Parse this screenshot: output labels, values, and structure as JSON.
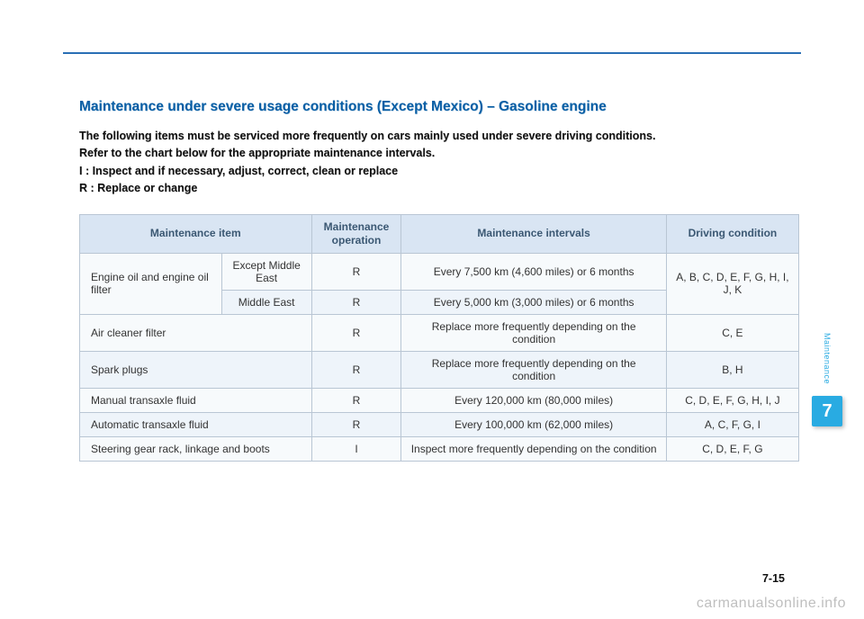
{
  "section_title": "Maintenance under severe usage conditions (Except Mexico) – Gasoline engine",
  "intro": {
    "line1": "The following items must be serviced more frequently on cars mainly used under severe driving conditions.",
    "line2": "Refer to the chart below for the appropriate maintenance intervals.",
    "line3": "I : Inspect and if necessary, adjust, correct, clean or replace",
    "line4": "R : Replace or change"
  },
  "table": {
    "headers": {
      "item": "Maintenance item",
      "operation": "Maintenance operation",
      "intervals": "Maintenance intervals",
      "condition": "Driving condition"
    },
    "rows": {
      "engine_oil_label": "Engine oil and engine oil filter",
      "engine_oil_except_sub": "Except Middle East",
      "engine_oil_except_op": "R",
      "engine_oil_except_int": "Every 7,500 km (4,600 miles) or 6 months",
      "engine_oil_me_sub": "Middle East",
      "engine_oil_me_op": "R",
      "engine_oil_me_int": "Every 5,000 km (3,000 miles) or 6 months",
      "engine_oil_cond": "A, B, C, D, E, F, G, H, I, J, K",
      "air_cleaner_item": "Air cleaner filter",
      "air_cleaner_op": "R",
      "air_cleaner_int": "Replace more frequently depending on the condition",
      "air_cleaner_cond": "C, E",
      "spark_item": "Spark plugs",
      "spark_op": "R",
      "spark_int": "Replace more frequently depending on the condition",
      "spark_cond": "B, H",
      "manual_item": "Manual transaxle fluid",
      "manual_op": "R",
      "manual_int": "Every 120,000 km (80,000 miles)",
      "manual_cond": "C, D, E, F, G, H, I, J",
      "auto_item": "Automatic transaxle fluid",
      "auto_op": "R",
      "auto_int": "Every 100,000 km (62,000 miles)",
      "auto_cond": "A, C, F, G, I",
      "steer_item": "Steering gear rack, linkage and boots",
      "steer_op": "I",
      "steer_int": "Inspect more frequently depending on the condition",
      "steer_cond": "C, D, E, F, G"
    }
  },
  "side": {
    "label": "Maintenance",
    "chapter": "7"
  },
  "page_number": "7-15",
  "watermark": "carmanualsonline.info",
  "colors": {
    "accent_blue": "#0a5fa5",
    "rule_blue": "#2a6fb5",
    "header_bg": "#d9e5f3",
    "header_text": "#3b5873",
    "row_odd": "#f7fafc",
    "row_even": "#eef4fa",
    "border": "#b9c6d4",
    "tab_blue": "#29abe2",
    "watermark": "#bfbfbf"
  },
  "fonts": {
    "title_size_pt": 15.5,
    "body_size_pt": 12.5,
    "table_size_pt": 12
  }
}
